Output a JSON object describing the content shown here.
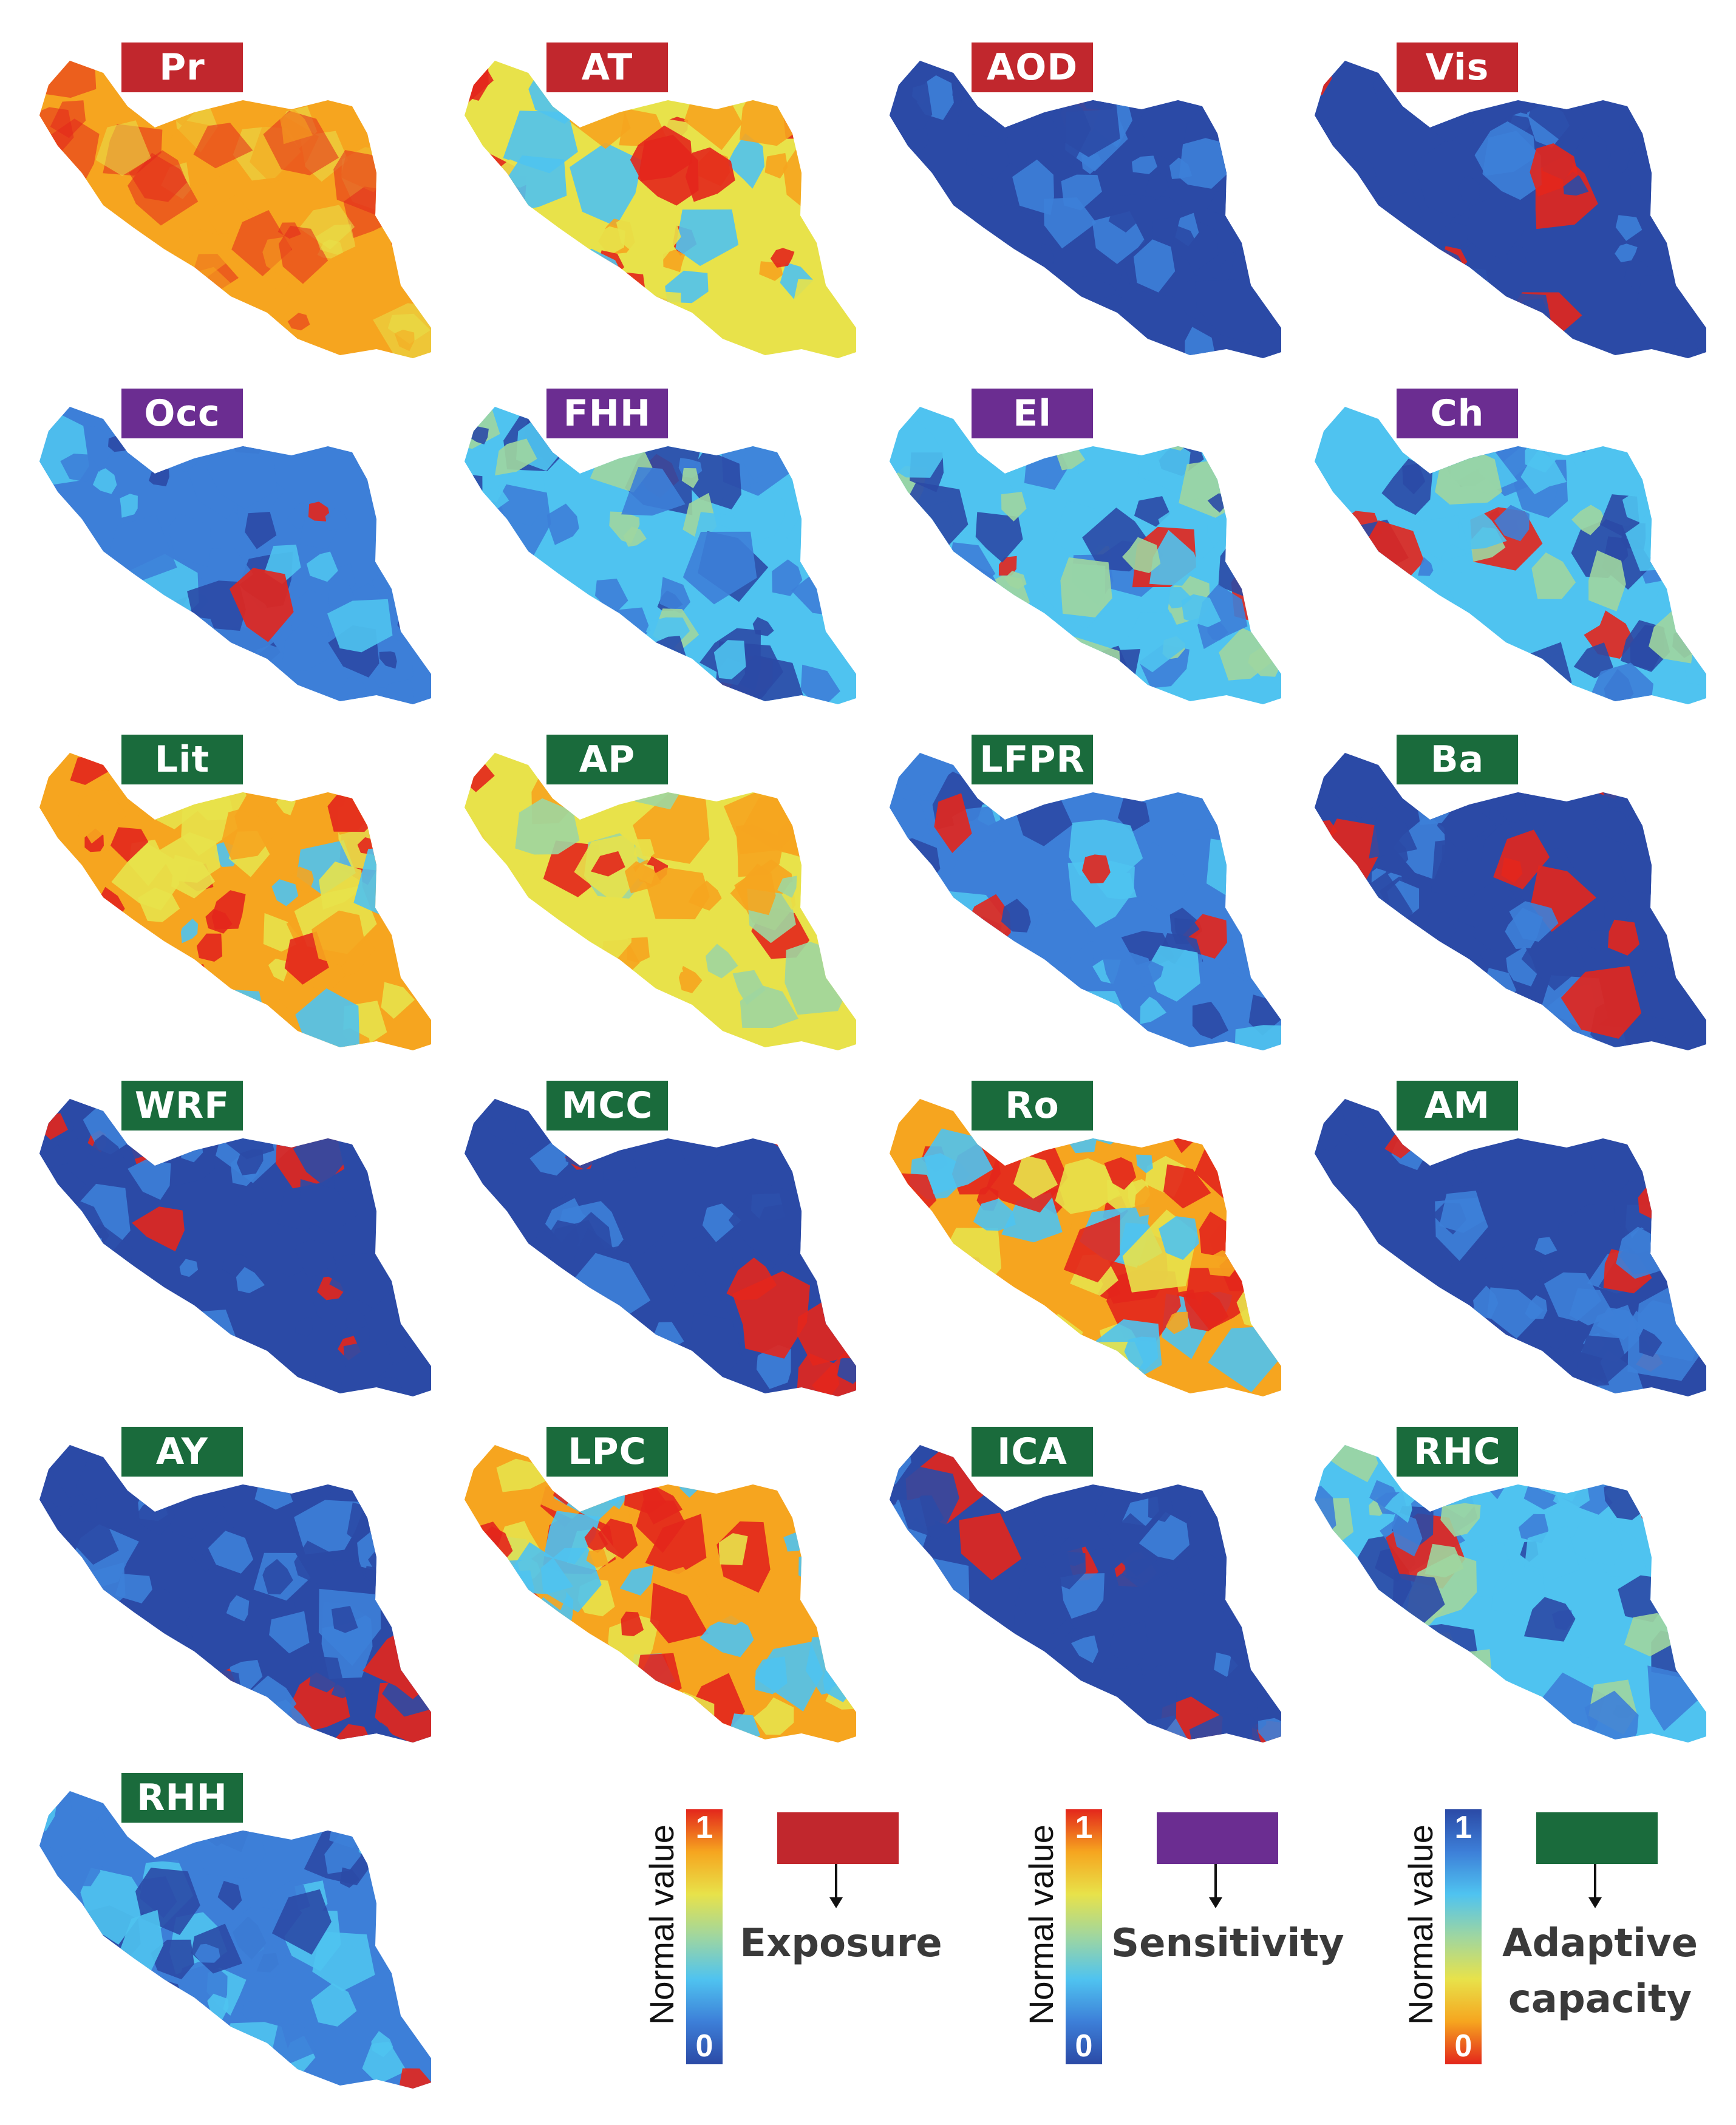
{
  "colors": {
    "exposure": "#c1272d",
    "sensitivity": "#6b2d91",
    "adaptive": "#1a6b3c"
  },
  "panels": [
    {
      "label": "Pr",
      "group": "exposure",
      "style": "smooth-warm"
    },
    {
      "label": "AT",
      "group": "exposure",
      "style": "mixed-warm"
    },
    {
      "label": "AOD",
      "group": "exposure",
      "style": "mostly-low"
    },
    {
      "label": "Vis",
      "group": "exposure",
      "style": "mostly-low"
    },
    {
      "label": "Occ",
      "group": "sensitivity",
      "style": "patchy-low"
    },
    {
      "label": "FHH",
      "group": "sensitivity",
      "style": "patchy-mid"
    },
    {
      "label": "El",
      "group": "sensitivity",
      "style": "patchy-mid"
    },
    {
      "label": "Ch",
      "group": "sensitivity",
      "style": "patchy-mid"
    },
    {
      "label": "Lit",
      "group": "adaptive",
      "style": "patchy-high"
    },
    {
      "label": "AP",
      "group": "adaptive",
      "style": "patchy-yellow"
    },
    {
      "label": "LFPR",
      "group": "adaptive",
      "style": "patchy-low"
    },
    {
      "label": "Ba",
      "group": "adaptive",
      "style": "mostly-low"
    },
    {
      "label": "WRF",
      "group": "adaptive",
      "style": "mostly-low"
    },
    {
      "label": "MCC",
      "group": "adaptive",
      "style": "mostly-low"
    },
    {
      "label": "Ro",
      "group": "adaptive",
      "style": "patchy-high"
    },
    {
      "label": "AM",
      "group": "adaptive",
      "style": "mostly-low"
    },
    {
      "label": "AY",
      "group": "adaptive",
      "style": "mostly-low"
    },
    {
      "label": "LPC",
      "group": "adaptive",
      "style": "patchy-high"
    },
    {
      "label": "ICA",
      "group": "adaptive",
      "style": "mostly-low"
    },
    {
      "label": "RHC",
      "group": "adaptive",
      "style": "patchy-mid"
    },
    {
      "label": "RHH",
      "group": "adaptive",
      "style": "patchy-low"
    }
  ],
  "legends": [
    {
      "ylabel": "Normal value",
      "top": "1",
      "bottom": "0",
      "group": "exposure",
      "category": "Exposure",
      "ramp": "blue-to-red"
    },
    {
      "ylabel": "Normal value",
      "top": "1",
      "bottom": "0",
      "group": "sensitivity",
      "category": "Sensitivity",
      "ramp": "blue-to-red"
    },
    {
      "ylabel": "Normal value",
      "top": "1",
      "bottom": "0",
      "group": "adaptive",
      "category": "Adaptive\ncapacity",
      "ramp": "red-to-blue"
    }
  ]
}
